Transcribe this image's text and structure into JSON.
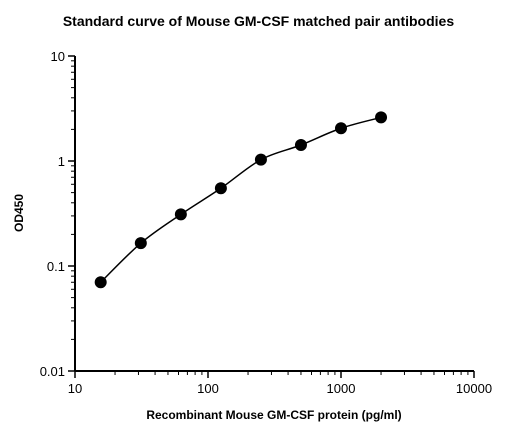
{
  "chart_data": {
    "type": "scatter",
    "title": "Standard curve of Mouse GM-CSF matched pair antibodies",
    "xlabel": "Recombinant Mouse GM-CSF protein (pg/ml)",
    "ylabel": "OD450",
    "xscale": "log",
    "yscale": "log",
    "xlim": [
      10,
      10000
    ],
    "ylim": [
      0.01,
      10
    ],
    "x_ticks": [
      "10",
      "100",
      "1000",
      "10000"
    ],
    "y_ticks": [
      "0.01",
      "0.1",
      "1",
      "10"
    ],
    "grid": false,
    "legend": "none",
    "fit_line": true,
    "series": [
      {
        "x": [
          15.6,
          31.25,
          62.5,
          125,
          250,
          500,
          1000,
          2000
        ],
        "values": [
          0.07,
          0.165,
          0.31,
          0.55,
          1.03,
          1.42,
          2.05,
          2.6
        ]
      }
    ],
    "colors": {
      "marker": "#000000",
      "line": "#000000"
    }
  }
}
